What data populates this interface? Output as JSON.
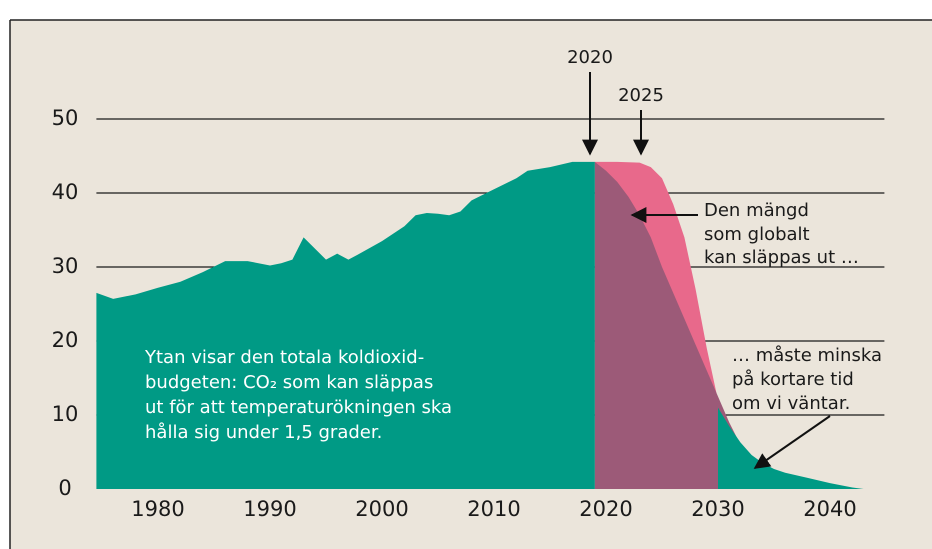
{
  "chart_data": {
    "type": "area",
    "xlim": [
      1974.5,
      2044.5
    ],
    "xticks": [
      1980,
      1990,
      2000,
      2010,
      2020,
      2030,
      2040
    ],
    "ylim": [
      0,
      50
    ],
    "yticks": [
      0,
      10,
      20,
      30,
      40,
      50
    ],
    "grid": true,
    "series": [
      {
        "color": "#e8698b",
        "x": [
          2019,
          2021,
          2023,
          2024,
          2025,
          2026,
          2027,
          2028,
          2029,
          2030,
          2031,
          2032,
          2033,
          2034,
          2035
        ],
        "values": [
          44.2,
          44.2,
          44.1,
          43.5,
          42,
          38.5,
          34,
          27,
          19,
          12,
          8,
          5,
          3,
          1.2,
          0
        ]
      },
      {
        "color": "#9c5a78",
        "x": [
          2019,
          2020,
          2021,
          2022,
          2023,
          2024,
          2025,
          2026,
          2027,
          2028,
          2029,
          2030,
          2031,
          2032,
          2033,
          2034,
          2035
        ],
        "values": [
          44.2,
          43,
          41.5,
          39.5,
          37,
          34,
          30,
          26.5,
          23,
          19.5,
          16,
          12.5,
          9,
          6,
          3.2,
          1.2,
          0
        ]
      },
      {
        "color": "#009a85",
        "x": [
          1974.5,
          1976,
          1978,
          1980,
          1982,
          1984,
          1986,
          1988,
          1990,
          1991,
          1992,
          1993,
          1995,
          1996,
          1997,
          1998,
          2000,
          2002,
          2003,
          2004,
          2005,
          2006,
          2007,
          2008,
          2010,
          2012,
          2013,
          2015,
          2017,
          2019,
          2025,
          2030,
          2031,
          2032,
          2033,
          2034,
          2035,
          2036,
          2038,
          2040,
          2042,
          2043
        ],
        "values": [
          26.5,
          25.7,
          26.3,
          27.2,
          28,
          29.3,
          30.8,
          30.8,
          30.2,
          30.5,
          31,
          34,
          31,
          31.8,
          31,
          31.8,
          33.5,
          35.5,
          37,
          37.3,
          37.2,
          37,
          37.5,
          39,
          40.5,
          42,
          43,
          43.5,
          44.2,
          44.2,
          null,
          11,
          8.5,
          6.3,
          4.6,
          3.5,
          2.7,
          2.2,
          1.5,
          0.8,
          0.2,
          0
        ]
      }
    ],
    "annotations": [
      {
        "text": "2020"
      },
      {
        "text": "2025"
      },
      {
        "lines": [
          "Den mängd",
          "som globalt",
          "kan släppas ut …"
        ]
      },
      {
        "lines": [
          "… måste minska",
          "på kortare tid",
          "om vi väntar."
        ]
      },
      {
        "lines": [
          "Ytan visar den totala koldioxid-",
          "budgeten: CO₂ som kan släppas",
          "ut för att temperaturökningen ska",
          "hålla sig under 1,5 grader."
        ]
      }
    ]
  }
}
